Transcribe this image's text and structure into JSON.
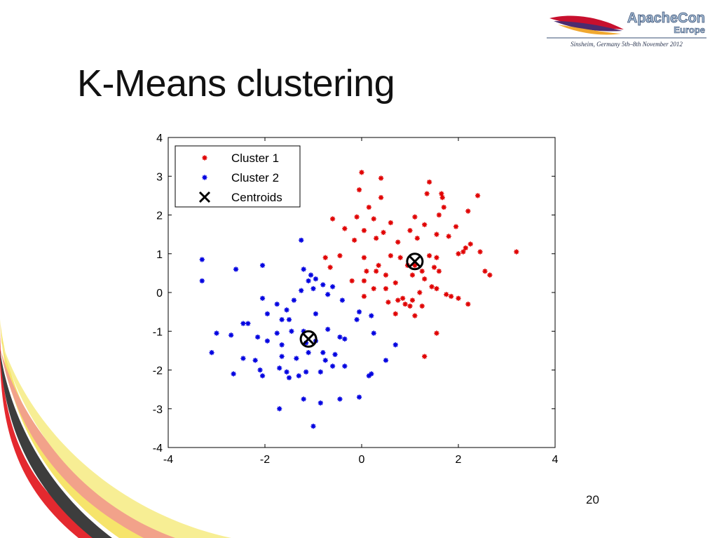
{
  "slide": {
    "title": "K-Means clustering",
    "page_number": "20"
  },
  "logo": {
    "name_line1": "ApacheCon",
    "name_line2": "Europe",
    "tagline": "Sinsheim, Germany 5th–8th November 2012",
    "colors": {
      "text": "#a8c0d8",
      "outline": "#3a4f73",
      "feather_red": "#c8102e",
      "feather_purple": "#4b2c6f",
      "feather_gold": "#f0a830"
    }
  },
  "decoration": {
    "swoosh_colors": [
      "#e4292f",
      "#f6e46b",
      "#3d3d3d",
      "#f2a28a",
      "#f7ee94"
    ]
  },
  "chart_data": {
    "type": "scatter",
    "xlim": [
      -4,
      4
    ],
    "ylim": [
      -4,
      4
    ],
    "xticks": [
      "-4",
      "-2",
      "0",
      "2",
      "4"
    ],
    "yticks": [
      "4",
      "3",
      "2",
      "1",
      "0",
      "-1",
      "-2",
      "-3",
      "-4"
    ],
    "grid": false,
    "legend_position": "top-left",
    "legend": [
      "Cluster 1",
      "Cluster 2",
      "Centroids"
    ],
    "series": [
      {
        "name": "Cluster 1",
        "color": "#e00000",
        "marker": "asterisk",
        "points": [
          [
            0,
            3.1
          ],
          [
            0.4,
            2.95
          ],
          [
            1.4,
            2.85
          ],
          [
            -0.05,
            2.65
          ],
          [
            0.4,
            2.45
          ],
          [
            1.35,
            2.55
          ],
          [
            1.65,
            2.55
          ],
          [
            1.67,
            2.45
          ],
          [
            2.4,
            2.5
          ],
          [
            0.15,
            2.2
          ],
          [
            1.7,
            2.2
          ],
          [
            -0.6,
            1.9
          ],
          [
            -0.1,
            1.95
          ],
          [
            0.25,
            1.9
          ],
          [
            0.6,
            1.8
          ],
          [
            1.1,
            1.95
          ],
          [
            1.3,
            1.75
          ],
          [
            1.6,
            2.0
          ],
          [
            2.2,
            2.1
          ],
          [
            -0.35,
            1.65
          ],
          [
            0.05,
            1.6
          ],
          [
            0.45,
            1.55
          ],
          [
            1.0,
            1.6
          ],
          [
            1.55,
            1.5
          ],
          [
            1.95,
            1.7
          ],
          [
            -0.15,
            1.35
          ],
          [
            0.3,
            1.4
          ],
          [
            0.75,
            1.3
          ],
          [
            1.15,
            1.4
          ],
          [
            1.8,
            1.45
          ],
          [
            2.25,
            1.25
          ],
          [
            2.15,
            1.15
          ],
          [
            -0.75,
            0.9
          ],
          [
            -0.45,
            0.95
          ],
          [
            -0.65,
            0.65
          ],
          [
            0.05,
            0.9
          ],
          [
            0.6,
            0.95
          ],
          [
            0.8,
            0.9
          ],
          [
            0.95,
            0.7
          ],
          [
            1.4,
            0.95
          ],
          [
            1.55,
            0.9
          ],
          [
            2.0,
            1.0
          ],
          [
            2.1,
            1.05
          ],
          [
            2.45,
            1.05
          ],
          [
            3.2,
            1.05
          ],
          [
            -0.2,
            0.3
          ],
          [
            0.1,
            0.55
          ],
          [
            0.3,
            0.55
          ],
          [
            0.35,
            0.7
          ],
          [
            0.5,
            0.45
          ],
          [
            0.05,
            0.3
          ],
          [
            0.7,
            0.25
          ],
          [
            1.05,
            0.45
          ],
          [
            1.25,
            0.55
          ],
          [
            1.5,
            0.65
          ],
          [
            1.6,
            0.55
          ],
          [
            2.55,
            0.55
          ],
          [
            2.65,
            0.45
          ],
          [
            0.05,
            -0.1
          ],
          [
            0.25,
            0.1
          ],
          [
            0.5,
            0.1
          ],
          [
            0.75,
            -0.2
          ],
          [
            0.85,
            -0.15
          ],
          [
            0.9,
            -0.3
          ],
          [
            1.05,
            -0.2
          ],
          [
            1.2,
            0.0
          ],
          [
            1.25,
            -0.35
          ],
          [
            1.45,
            0.15
          ],
          [
            1.55,
            0.1
          ],
          [
            1.75,
            -0.05
          ],
          [
            1.85,
            -0.1
          ],
          [
            2.0,
            -0.15
          ],
          [
            2.2,
            -0.3
          ],
          [
            0.55,
            -0.25
          ],
          [
            0.7,
            -0.55
          ],
          [
            1.0,
            -0.35
          ],
          [
            1.1,
            -0.6
          ],
          [
            1.55,
            -1.05
          ],
          [
            1.3,
            -1.65
          ],
          [
            1.1,
            0.7
          ],
          [
            1.3,
            0.35
          ]
        ]
      },
      {
        "name": "Cluster 2",
        "color": "#0000e0",
        "marker": "asterisk",
        "points": [
          [
            -3.3,
            0.85
          ],
          [
            -3.3,
            0.3
          ],
          [
            -2.6,
            0.6
          ],
          [
            -2.05,
            0.7
          ],
          [
            -1.25,
            1.35
          ],
          [
            -1.2,
            0.6
          ],
          [
            -1.05,
            0.45
          ],
          [
            -1.1,
            0.3
          ],
          [
            -0.95,
            0.35
          ],
          [
            -0.8,
            0.2
          ],
          [
            -1.25,
            0.05
          ],
          [
            -1.0,
            0.1
          ],
          [
            -0.6,
            0.15
          ],
          [
            -0.7,
            -0.05
          ],
          [
            -2.05,
            -0.15
          ],
          [
            -1.75,
            -0.3
          ],
          [
            -1.4,
            -0.2
          ],
          [
            -0.4,
            -0.2
          ],
          [
            -1.95,
            -0.55
          ],
          [
            -1.55,
            -0.45
          ],
          [
            -2.45,
            -0.8
          ],
          [
            -2.35,
            -0.8
          ],
          [
            -1.65,
            -0.7
          ],
          [
            -1.5,
            -0.7
          ],
          [
            -0.95,
            -0.55
          ],
          [
            -0.05,
            -0.5
          ],
          [
            0.2,
            -0.6
          ],
          [
            -0.1,
            -0.7
          ],
          [
            -3.0,
            -1.05
          ],
          [
            -2.7,
            -1.1
          ],
          [
            -2.15,
            -1.15
          ],
          [
            -1.95,
            -1.25
          ],
          [
            -1.75,
            -1.05
          ],
          [
            -1.65,
            -1.35
          ],
          [
            -1.45,
            -1.0
          ],
          [
            -1.2,
            -1.0
          ],
          [
            -0.95,
            -1.25
          ],
          [
            -0.7,
            -0.95
          ],
          [
            -0.45,
            -1.15
          ],
          [
            -0.35,
            -1.2
          ],
          [
            0.25,
            -1.05
          ],
          [
            0.7,
            -1.35
          ],
          [
            -3.1,
            -1.55
          ],
          [
            -2.45,
            -1.7
          ],
          [
            -2.2,
            -1.75
          ],
          [
            -2.1,
            -2.0
          ],
          [
            -1.65,
            -1.65
          ],
          [
            -1.35,
            -1.7
          ],
          [
            -1.1,
            -1.55
          ],
          [
            -0.8,
            -1.55
          ],
          [
            -0.75,
            -1.75
          ],
          [
            -0.55,
            -1.6
          ],
          [
            -0.35,
            -1.9
          ],
          [
            -2.65,
            -2.1
          ],
          [
            -2.05,
            -2.15
          ],
          [
            -1.7,
            -1.95
          ],
          [
            -1.55,
            -2.05
          ],
          [
            -1.5,
            -2.2
          ],
          [
            -1.3,
            -2.15
          ],
          [
            -1.15,
            -2.05
          ],
          [
            -0.85,
            -2.05
          ],
          [
            -0.6,
            -1.9
          ],
          [
            0.2,
            -2.1
          ],
          [
            0.15,
            -2.15
          ],
          [
            0.5,
            -1.75
          ],
          [
            -1.2,
            -2.75
          ],
          [
            -0.85,
            -2.85
          ],
          [
            -0.45,
            -2.75
          ],
          [
            -0.05,
            -2.7
          ],
          [
            -1.7,
            -3.0
          ],
          [
            -1.0,
            -3.45
          ],
          [
            -1.15,
            -1.3
          ]
        ]
      }
    ],
    "centroids": [
      [
        1.1,
        0.8
      ],
      [
        -1.1,
        -1.2
      ]
    ]
  }
}
